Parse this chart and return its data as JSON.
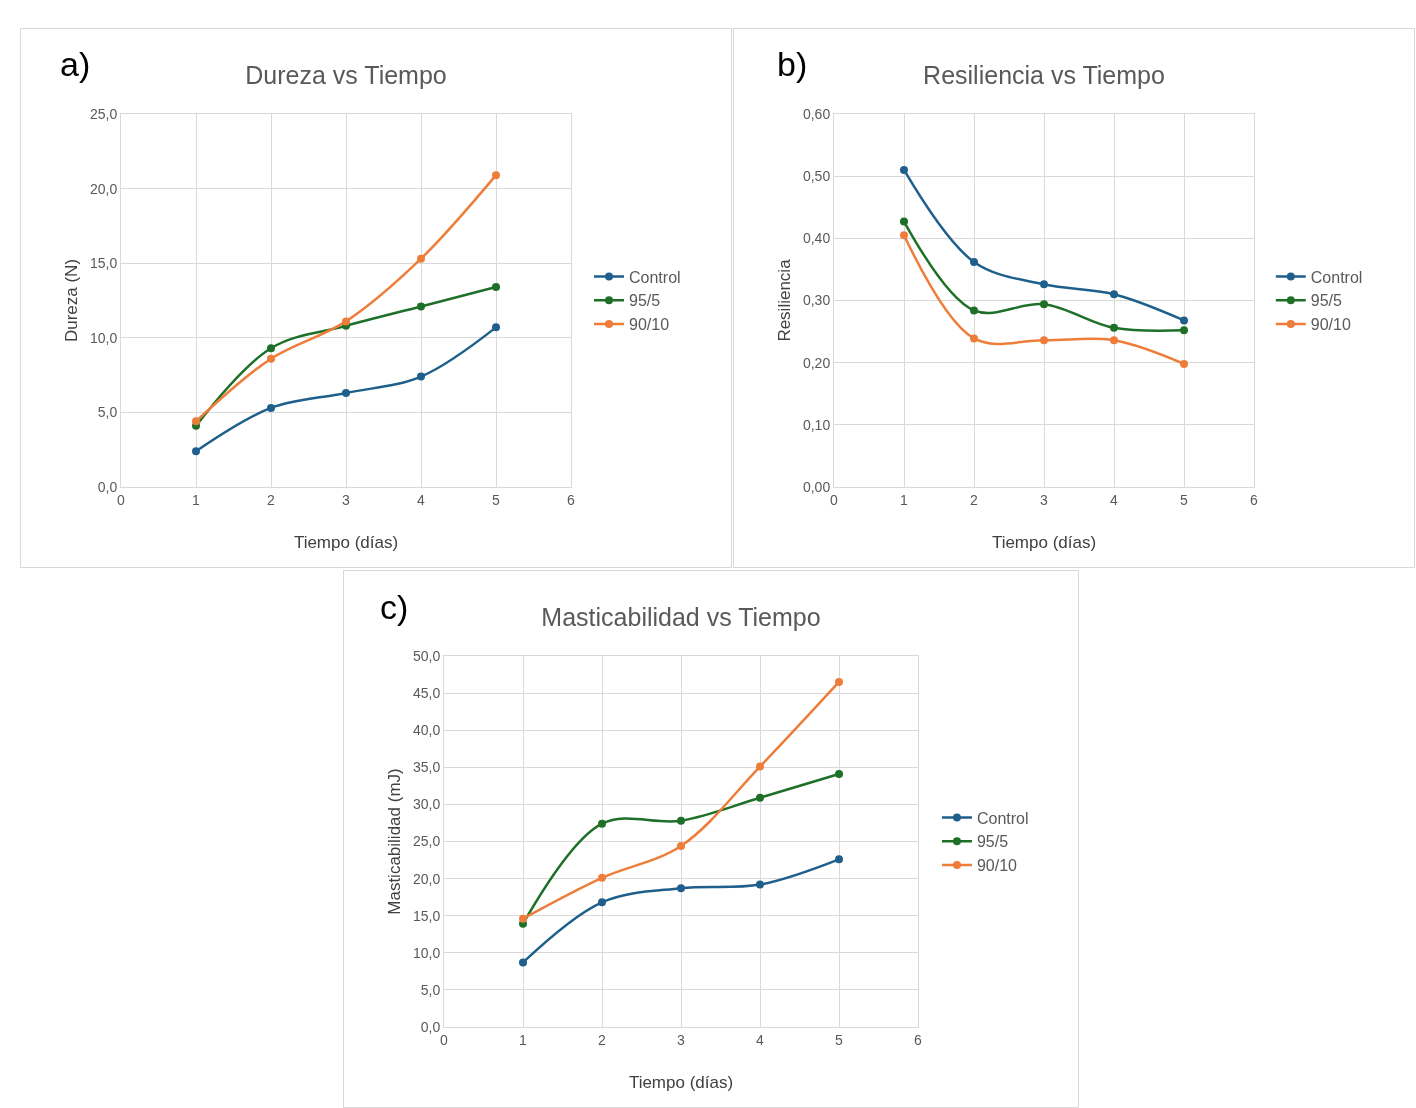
{
  "chart_data": [
    {
      "type": "line",
      "title": "Dureza vs Tiempo",
      "xlabel": "Tiempo (días)",
      "ylabel": "Dureza (N)",
      "annotations": [
        "a)"
      ],
      "x": [
        1,
        2,
        3,
        4,
        5
      ],
      "xlim": [
        0,
        6
      ],
      "xticks": [
        0,
        1,
        2,
        3,
        4,
        5,
        6
      ],
      "ylim": [
        0,
        25
      ],
      "yticks": [
        {
          "value": 0,
          "label": "0,0"
        },
        {
          "value": 5,
          "label": "5,0"
        },
        {
          "value": 10,
          "label": "10,0"
        },
        {
          "value": 15,
          "label": "15,0"
        },
        {
          "value": 20,
          "label": "20,0"
        },
        {
          "value": 25,
          "label": "25,0"
        }
      ],
      "grid": true,
      "legend": "right",
      "marker": "circle",
      "series": [
        {
          "name": "Control",
          "color": "#1f5f8b",
          "values": [
            2.4,
            5.3,
            6.3,
            7.4,
            10.7
          ]
        },
        {
          "name": "95/5",
          "color": "#1e7028",
          "values": [
            4.1,
            9.3,
            10.8,
            12.1,
            13.4
          ]
        },
        {
          "name": "90/10",
          "color": "#ee7d3a",
          "values": [
            4.4,
            8.6,
            11.1,
            15.3,
            20.9
          ]
        }
      ]
    },
    {
      "type": "line",
      "title": "Resiliencia vs Tiempo",
      "xlabel": "Tiempo (días)",
      "ylabel": "Resiliencia",
      "annotations": [
        "b)"
      ],
      "x": [
        1,
        2,
        3,
        4,
        5
      ],
      "xlim": [
        0,
        6
      ],
      "xticks": [
        0,
        1,
        2,
        3,
        4,
        5,
        6
      ],
      "ylim": [
        0,
        0.6
      ],
      "yticks": [
        {
          "value": 0,
          "label": "0,00"
        },
        {
          "value": 0.1,
          "label": "0,10"
        },
        {
          "value": 0.2,
          "label": "0,20"
        },
        {
          "value": 0.3,
          "label": "0,30"
        },
        {
          "value": 0.4,
          "label": "0,40"
        },
        {
          "value": 0.5,
          "label": "0,50"
        },
        {
          "value": 0.6,
          "label": "0,60"
        }
      ],
      "grid": true,
      "legend": "right",
      "marker": "circle",
      "series": [
        {
          "name": "Control",
          "color": "#1f5f8b",
          "values": [
            0.51,
            0.362,
            0.326,
            0.31,
            0.268
          ]
        },
        {
          "name": "95/5",
          "color": "#1e7028",
          "values": [
            0.427,
            0.284,
            0.294,
            0.256,
            0.252
          ]
        },
        {
          "name": "90/10",
          "color": "#ee7d3a",
          "values": [
            0.405,
            0.239,
            0.236,
            0.236,
            0.198
          ]
        }
      ]
    },
    {
      "type": "line",
      "title": "Masticabilidad vs Tiempo",
      "xlabel": "Tiempo (días)",
      "ylabel": "Masticabilidad (mJ)",
      "annotations": [
        "c)"
      ],
      "x": [
        1,
        2,
        3,
        4,
        5
      ],
      "xlim": [
        0,
        6
      ],
      "xticks": [
        0,
        1,
        2,
        3,
        4,
        5,
        6
      ],
      "ylim": [
        0,
        50
      ],
      "yticks": [
        {
          "value": 0,
          "label": "0,0"
        },
        {
          "value": 5,
          "label": "5,0"
        },
        {
          "value": 10,
          "label": "10,0"
        },
        {
          "value": 15,
          "label": "15,0"
        },
        {
          "value": 20,
          "label": "20,0"
        },
        {
          "value": 25,
          "label": "25,0"
        },
        {
          "value": 30,
          "label": "30,0"
        },
        {
          "value": 35,
          "label": "35,0"
        },
        {
          "value": 40,
          "label": "40,0"
        },
        {
          "value": 45,
          "label": "45,0"
        },
        {
          "value": 50,
          "label": "50,0"
        }
      ],
      "grid": true,
      "legend": "right",
      "marker": "circle",
      "series": [
        {
          "name": "Control",
          "color": "#1f5f8b",
          "values": [
            8.7,
            16.8,
            18.7,
            19.2,
            22.6
          ]
        },
        {
          "name": "95/5",
          "color": "#1e7028",
          "values": [
            13.9,
            27.4,
            27.8,
            30.9,
            34.1
          ]
        },
        {
          "name": "90/10",
          "color": "#ee7d3a",
          "values": [
            14.6,
            20.1,
            24.4,
            35.1,
            46.5
          ]
        }
      ]
    }
  ]
}
